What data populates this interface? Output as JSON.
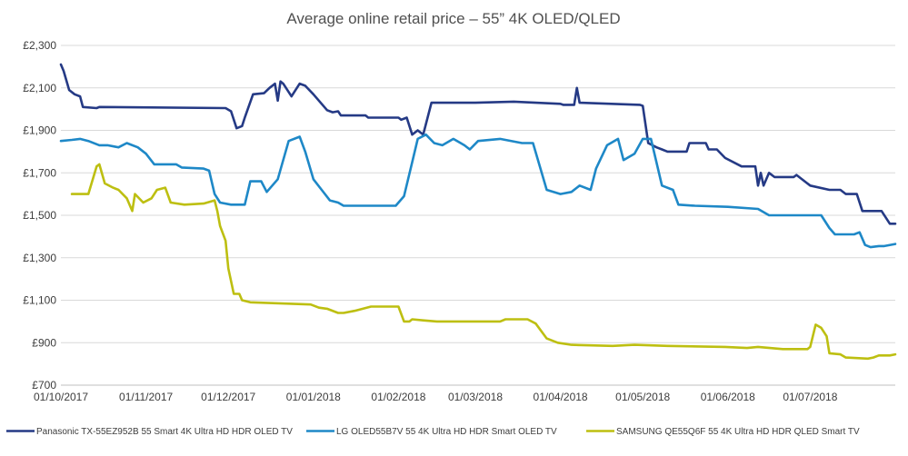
{
  "chart_data": {
    "type": "line",
    "title": "Average online retail price – 55” 4K OLED/QLED",
    "xlabel": "",
    "ylabel": "",
    "ylim": [
      700,
      2300
    ],
    "yticks": [
      "£700",
      "£900",
      "£1,100",
      "£1,300",
      "£1,500",
      "£1,700",
      "£1,900",
      "£2,100",
      "£2,300"
    ],
    "ytick_values": [
      700,
      900,
      1100,
      1300,
      1500,
      1700,
      1900,
      2100,
      2300
    ],
    "xlim": [
      "2017-10-01",
      "2018-08-01"
    ],
    "xticks": [
      "01/10/2017",
      "01/11/2017",
      "01/12/2017",
      "01/01/2018",
      "01/02/2018",
      "01/03/2018",
      "01/04/2018",
      "01/05/2018",
      "01/06/2018",
      "01/07/2018"
    ],
    "xtick_dates": [
      "2017-10-01",
      "2017-11-01",
      "2017-12-01",
      "2018-01-01",
      "2018-02-01",
      "2018-03-01",
      "2018-04-01",
      "2018-05-01",
      "2018-06-01",
      "2018-07-01"
    ],
    "grid": "horizontal",
    "legend": "bottom",
    "series": [
      {
        "name": "Panasonic TX-55EZ952B 55 Smart 4K Ultra HD HDR OLED TV",
        "color": "#253A85",
        "points": [
          [
            "2017-10-01",
            2210
          ],
          [
            "2017-10-02",
            2180
          ],
          [
            "2017-10-04",
            2090
          ],
          [
            "2017-10-06",
            2070
          ],
          [
            "2017-10-08",
            2060
          ],
          [
            "2017-10-09",
            2010
          ],
          [
            "2017-10-14",
            2005
          ],
          [
            "2017-10-15",
            2010
          ],
          [
            "2017-11-30",
            2005
          ],
          [
            "2017-12-02",
            1990
          ],
          [
            "2017-12-04",
            1910
          ],
          [
            "2017-12-06",
            1920
          ],
          [
            "2017-12-07",
            1960
          ],
          [
            "2017-12-10",
            2070
          ],
          [
            "2017-12-14",
            2075
          ],
          [
            "2017-12-16",
            2100
          ],
          [
            "2017-12-18",
            2120
          ],
          [
            "2017-12-19",
            2040
          ],
          [
            "2017-12-20",
            2130
          ],
          [
            "2017-12-21",
            2120
          ],
          [
            "2017-12-24",
            2060
          ],
          [
            "2017-12-27",
            2120
          ],
          [
            "2017-12-29",
            2110
          ],
          [
            "2018-01-01",
            2070
          ],
          [
            "2018-01-06",
            1995
          ],
          [
            "2018-01-08",
            1985
          ],
          [
            "2018-01-10",
            1990
          ],
          [
            "2018-01-11",
            1970
          ],
          [
            "2018-01-20",
            1970
          ],
          [
            "2018-01-21",
            1960
          ],
          [
            "2018-02-01",
            1960
          ],
          [
            "2018-02-02",
            1950
          ],
          [
            "2018-02-04",
            1960
          ],
          [
            "2018-02-06",
            1880
          ],
          [
            "2018-02-08",
            1900
          ],
          [
            "2018-02-10",
            1880
          ],
          [
            "2018-02-13",
            2030
          ],
          [
            "2018-03-01",
            2030
          ],
          [
            "2018-03-15",
            2035
          ],
          [
            "2018-04-01",
            2025
          ],
          [
            "2018-04-02",
            2020
          ],
          [
            "2018-04-06",
            2020
          ],
          [
            "2018-04-07",
            2100
          ],
          [
            "2018-04-08",
            2030
          ],
          [
            "2018-04-30",
            2020
          ],
          [
            "2018-05-01",
            2015
          ],
          [
            "2018-05-03",
            1840
          ],
          [
            "2018-05-06",
            1820
          ],
          [
            "2018-05-08",
            1810
          ],
          [
            "2018-05-10",
            1800
          ],
          [
            "2018-05-17",
            1800
          ],
          [
            "2018-05-18",
            1840
          ],
          [
            "2018-05-24",
            1840
          ],
          [
            "2018-05-25",
            1810
          ],
          [
            "2018-05-28",
            1810
          ],
          [
            "2018-05-31",
            1770
          ],
          [
            "2018-06-06",
            1730
          ],
          [
            "2018-06-11",
            1730
          ],
          [
            "2018-06-12",
            1640
          ],
          [
            "2018-06-13",
            1700
          ],
          [
            "2018-06-14",
            1640
          ],
          [
            "2018-06-16",
            1700
          ],
          [
            "2018-06-18",
            1680
          ],
          [
            "2018-06-25",
            1680
          ],
          [
            "2018-06-26",
            1690
          ],
          [
            "2018-07-01",
            1640
          ],
          [
            "2018-07-08",
            1620
          ],
          [
            "2018-07-12",
            1620
          ],
          [
            "2018-07-14",
            1600
          ],
          [
            "2018-07-18",
            1600
          ],
          [
            "2018-07-20",
            1520
          ],
          [
            "2018-07-27",
            1520
          ],
          [
            "2018-07-30",
            1460
          ],
          [
            "2018-08-01",
            1460
          ]
        ]
      },
      {
        "name": "LG OLED55B7V 55 4K Ultra HD HDR Smart OLED TV",
        "color": "#1E88C7",
        "points": [
          [
            "2017-10-01",
            1850
          ],
          [
            "2017-10-05",
            1855
          ],
          [
            "2017-10-08",
            1860
          ],
          [
            "2017-10-11",
            1850
          ],
          [
            "2017-10-15",
            1830
          ],
          [
            "2017-10-18",
            1830
          ],
          [
            "2017-10-22",
            1820
          ],
          [
            "2017-10-25",
            1840
          ],
          [
            "2017-10-29",
            1820
          ],
          [
            "2017-11-01",
            1790
          ],
          [
            "2017-11-04",
            1740
          ],
          [
            "2017-11-12",
            1740
          ],
          [
            "2017-11-14",
            1725
          ],
          [
            "2017-11-22",
            1720
          ],
          [
            "2017-11-24",
            1710
          ],
          [
            "2017-11-26",
            1600
          ],
          [
            "2017-11-28",
            1560
          ],
          [
            "2017-12-02",
            1550
          ],
          [
            "2017-12-07",
            1550
          ],
          [
            "2017-12-09",
            1660
          ],
          [
            "2017-12-13",
            1660
          ],
          [
            "2017-12-15",
            1610
          ],
          [
            "2017-12-19",
            1670
          ],
          [
            "2017-12-23",
            1850
          ],
          [
            "2017-12-27",
            1870
          ],
          [
            "2017-12-29",
            1800
          ],
          [
            "2018-01-01",
            1670
          ],
          [
            "2018-01-04",
            1620
          ],
          [
            "2018-01-07",
            1570
          ],
          [
            "2018-01-10",
            1560
          ],
          [
            "2018-01-12",
            1545
          ],
          [
            "2018-01-31",
            1545
          ],
          [
            "2018-02-03",
            1590
          ],
          [
            "2018-02-06",
            1750
          ],
          [
            "2018-02-08",
            1860
          ],
          [
            "2018-02-11",
            1880
          ],
          [
            "2018-02-14",
            1840
          ],
          [
            "2018-02-17",
            1830
          ],
          [
            "2018-02-21",
            1860
          ],
          [
            "2018-02-25",
            1830
          ],
          [
            "2018-02-27",
            1810
          ],
          [
            "2018-03-02",
            1850
          ],
          [
            "2018-03-10",
            1860
          ],
          [
            "2018-03-18",
            1840
          ],
          [
            "2018-03-22",
            1840
          ],
          [
            "2018-03-27",
            1620
          ],
          [
            "2018-04-01",
            1600
          ],
          [
            "2018-04-05",
            1610
          ],
          [
            "2018-04-08",
            1640
          ],
          [
            "2018-04-12",
            1620
          ],
          [
            "2018-04-14",
            1720
          ],
          [
            "2018-04-18",
            1830
          ],
          [
            "2018-04-22",
            1860
          ],
          [
            "2018-04-24",
            1760
          ],
          [
            "2018-04-28",
            1790
          ],
          [
            "2018-05-01",
            1860
          ],
          [
            "2018-05-04",
            1860
          ],
          [
            "2018-05-08",
            1640
          ],
          [
            "2018-05-12",
            1620
          ],
          [
            "2018-05-14",
            1550
          ],
          [
            "2018-05-20",
            1545
          ],
          [
            "2018-06-01",
            1540
          ],
          [
            "2018-06-12",
            1530
          ],
          [
            "2018-06-16",
            1500
          ],
          [
            "2018-06-22",
            1500
          ],
          [
            "2018-07-05",
            1500
          ],
          [
            "2018-07-08",
            1440
          ],
          [
            "2018-07-10",
            1410
          ],
          [
            "2018-07-17",
            1410
          ],
          [
            "2018-07-19",
            1420
          ],
          [
            "2018-07-21",
            1360
          ],
          [
            "2018-07-23",
            1350
          ],
          [
            "2018-07-26",
            1355
          ],
          [
            "2018-07-28",
            1355
          ],
          [
            "2018-08-01",
            1365
          ]
        ]
      },
      {
        "name": "SAMSUNG QE55Q6F 55 4K Ultra HD HDR QLED Smart TV",
        "color": "#BDBF11",
        "points": [
          [
            "2017-10-05",
            1600
          ],
          [
            "2017-10-11",
            1600
          ],
          [
            "2017-10-14",
            1730
          ],
          [
            "2017-10-15",
            1740
          ],
          [
            "2017-10-17",
            1650
          ],
          [
            "2017-10-20",
            1630
          ],
          [
            "2017-10-22",
            1620
          ],
          [
            "2017-10-25",
            1580
          ],
          [
            "2017-10-27",
            1520
          ],
          [
            "2017-10-28",
            1600
          ],
          [
            "2017-10-31",
            1560
          ],
          [
            "2017-11-03",
            1580
          ],
          [
            "2017-11-05",
            1620
          ],
          [
            "2017-11-08",
            1630
          ],
          [
            "2017-11-10",
            1560
          ],
          [
            "2017-11-15",
            1550
          ],
          [
            "2017-11-22",
            1555
          ],
          [
            "2017-11-26",
            1570
          ],
          [
            "2017-11-27",
            1520
          ],
          [
            "2017-11-28",
            1450
          ],
          [
            "2017-11-30",
            1380
          ],
          [
            "2017-12-01",
            1250
          ],
          [
            "2017-12-03",
            1130
          ],
          [
            "2017-12-05",
            1130
          ],
          [
            "2017-12-06",
            1100
          ],
          [
            "2017-12-09",
            1090
          ],
          [
            "2017-12-31",
            1080
          ],
          [
            "2018-01-03",
            1065
          ],
          [
            "2018-01-06",
            1060
          ],
          [
            "2018-01-10",
            1040
          ],
          [
            "2018-01-12",
            1040
          ],
          [
            "2018-01-16",
            1050
          ],
          [
            "2018-01-22",
            1070
          ],
          [
            "2018-02-01",
            1070
          ],
          [
            "2018-02-03",
            1000
          ],
          [
            "2018-02-05",
            1000
          ],
          [
            "2018-02-06",
            1010
          ],
          [
            "2018-02-10",
            1005
          ],
          [
            "2018-02-15",
            1000
          ],
          [
            "2018-03-10",
            1000
          ],
          [
            "2018-03-12",
            1010
          ],
          [
            "2018-03-20",
            1010
          ],
          [
            "2018-03-23",
            990
          ],
          [
            "2018-03-27",
            920
          ],
          [
            "2018-03-31",
            900
          ],
          [
            "2018-04-05",
            890
          ],
          [
            "2018-04-20",
            885
          ],
          [
            "2018-04-28",
            890
          ],
          [
            "2018-05-10",
            885
          ],
          [
            "2018-05-31",
            880
          ],
          [
            "2018-06-08",
            875
          ],
          [
            "2018-06-12",
            880
          ],
          [
            "2018-06-21",
            870
          ],
          [
            "2018-06-30",
            870
          ],
          [
            "2018-07-01",
            880
          ],
          [
            "2018-07-03",
            985
          ],
          [
            "2018-07-05",
            970
          ],
          [
            "2018-07-07",
            930
          ],
          [
            "2018-07-08",
            850
          ],
          [
            "2018-07-12",
            845
          ],
          [
            "2018-07-14",
            830
          ],
          [
            "2018-07-22",
            825
          ],
          [
            "2018-07-24",
            830
          ],
          [
            "2018-07-26",
            840
          ],
          [
            "2018-07-30",
            840
          ],
          [
            "2018-08-01",
            845
          ]
        ]
      }
    ]
  }
}
